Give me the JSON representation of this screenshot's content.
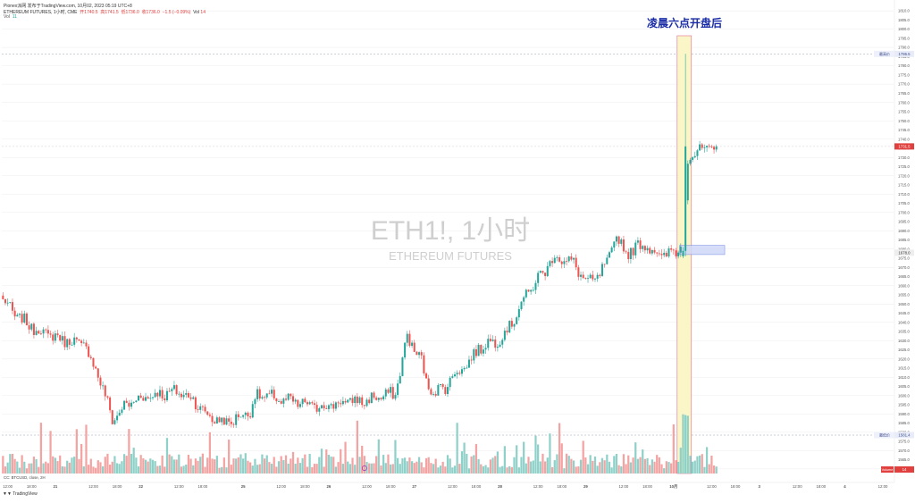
{
  "header": {
    "publisher_line": "Pionex派网 发布于TradingView.com,  10月02, 2023 05:19 UTC+8",
    "symbol": "ETHEREUM FUTURES, 1小时, CME",
    "open": "开1740.5",
    "high": "高1741.5",
    "low": "低1736.0",
    "close": "收1736.0",
    "change": "−1.5 (−0.09%)",
    "vol_label": "Vol",
    "vol_value": "14",
    "vol_row_label": "Vol",
    "vol_row_value": "11"
  },
  "annotation": {
    "text": "凌晨六点开盘后"
  },
  "watermark": {
    "title": "ETH1!, 1小时",
    "subtitle": "ETHEREUM FUTURES"
  },
  "indicator_label": "CC: BTCUSD, close, 2H",
  "footer_logo": "TradingView",
  "colors": {
    "up": "#26a69a",
    "down": "#ef5350",
    "up_volume": "#8fd1c9",
    "down_volume": "#f3a4a2",
    "highlight_fill": "#fbf6c8",
    "highlight_border": "#e26a9b",
    "box_fill": "#cfd8f7",
    "box_border": "#6f86e2",
    "annotation_color": "#1a2ca6",
    "price_tag_bg": "#e0413f"
  },
  "price_tags": {
    "high_label": "最高价",
    "high_value": "1786.5",
    "current_value": "1731.5",
    "mid_value": "1678.0",
    "low_label": "最低价",
    "low_value": "1581.4",
    "volume_label": "Volume",
    "volume_value": "14"
  },
  "chart_data": {
    "type": "candlestick",
    "symbol": "ETH1!",
    "timeframe": "1小时",
    "y_ticks": [
      "1810.0",
      "1805.0",
      "1800.0",
      "1795.0",
      "1790.0",
      "1785.0",
      "1780.0",
      "1775.0",
      "1770.0",
      "1765.0",
      "1760.0",
      "1755.0",
      "1750.0",
      "1745.0",
      "1740.0",
      "1735.0",
      "1730.0",
      "1725.0",
      "1720.0",
      "1715.0",
      "1710.0",
      "1705.0",
      "1700.0",
      "1695.0",
      "1690.0",
      "1685.0",
      "1680.0",
      "1675.0",
      "1670.0",
      "1665.0",
      "1660.0",
      "1655.0",
      "1650.0",
      "1645.0",
      "1640.0",
      "1635.0",
      "1630.0",
      "1625.0",
      "1620.0",
      "1615.0",
      "1610.0",
      "1605.0",
      "1600.0",
      "1595.0",
      "1590.0",
      "1585.0",
      "1580.0",
      "1575.0",
      "1570.0",
      "1565.0",
      "1560.0"
    ],
    "ylim": [
      1557.5,
      1812.0
    ],
    "x_ticks": [
      {
        "label": "12:00",
        "i": 2
      },
      {
        "label": "18:00",
        "i": 12
      },
      {
        "label": "21",
        "i": 22
      },
      {
        "label": "12:00",
        "i": 38
      },
      {
        "label": "18:00",
        "i": 48
      },
      {
        "label": "22",
        "i": 58
      },
      {
        "label": "12:00",
        "i": 74
      },
      {
        "label": "18:00",
        "i": 84
      },
      {
        "label": "25",
        "i": 101
      },
      {
        "label": "12:00",
        "i": 117
      },
      {
        "label": "18:00",
        "i": 127
      },
      {
        "label": "26",
        "i": 137
      },
      {
        "label": "12:00",
        "i": 153
      },
      {
        "label": "18:00",
        "i": 163
      },
      {
        "label": "27",
        "i": 173
      },
      {
        "label": "12:00",
        "i": 189
      },
      {
        "label": "18:00",
        "i": 199
      },
      {
        "label": "28",
        "i": 209
      },
      {
        "label": "12:00",
        "i": 225
      },
      {
        "label": "18:00",
        "i": 235
      },
      {
        "label": "29",
        "i": 245
      },
      {
        "label": "12:00",
        "i": 261
      },
      {
        "label": "18:00",
        "i": 271
      },
      {
        "label": "10月",
        "i": 282
      },
      {
        "label": "12:00",
        "i": 298
      },
      {
        "label": "18:00",
        "i": 308
      },
      {
        "label": "3",
        "i": 318
      },
      {
        "label": "12:00",
        "i": 334
      },
      {
        "label": "18:00",
        "i": 344
      },
      {
        "label": "4",
        "i": 354
      },
      {
        "label": "12:00",
        "i": 370
      }
    ],
    "series": [
      {
        "name": "ETH1!",
        "anchors": [
          [
            0,
            1652
          ],
          [
            6,
            1643
          ],
          [
            14,
            1636
          ],
          [
            22,
            1632
          ],
          [
            30,
            1629
          ],
          [
            34,
            1628
          ],
          [
            40,
            1612
          ],
          [
            46,
            1587
          ],
          [
            52,
            1595
          ],
          [
            58,
            1599
          ],
          [
            66,
            1601
          ],
          [
            74,
            1602
          ],
          [
            80,
            1598
          ],
          [
            86,
            1589
          ],
          [
            94,
            1585
          ],
          [
            102,
            1590
          ],
          [
            104,
            1592
          ],
          [
            106,
            1599
          ],
          [
            110,
            1600
          ],
          [
            116,
            1598
          ],
          [
            124,
            1596
          ],
          [
            132,
            1594
          ],
          [
            138,
            1595
          ],
          [
            146,
            1597
          ],
          [
            152,
            1597
          ],
          [
            160,
            1600
          ],
          [
            165,
            1601
          ],
          [
            170,
            1632
          ],
          [
            176,
            1619
          ],
          [
            178,
            1607
          ],
          [
            182,
            1602
          ],
          [
            186,
            1605
          ],
          [
            190,
            1612
          ],
          [
            196,
            1618
          ],
          [
            200,
            1626
          ],
          [
            210,
            1632
          ],
          [
            214,
            1640
          ],
          [
            220,
            1655
          ],
          [
            232,
            1676
          ],
          [
            240,
            1672
          ],
          [
            246,
            1661
          ],
          [
            250,
            1665
          ],
          [
            254,
            1672
          ],
          [
            258,
            1687
          ],
          [
            262,
            1678
          ],
          [
            270,
            1683
          ],
          [
            276,
            1676
          ],
          [
            284,
            1679
          ],
          [
            286,
            1686
          ],
          [
            288,
            1728
          ],
          [
            292,
            1735
          ],
          [
            296,
            1733
          ],
          [
            300,
            1736
          ]
        ],
        "spike": {
          "i": 287,
          "high": 1786.5
        }
      }
    ],
    "volume": {
      "ylim": [
        0,
        40
      ],
      "seed": 11
    }
  }
}
